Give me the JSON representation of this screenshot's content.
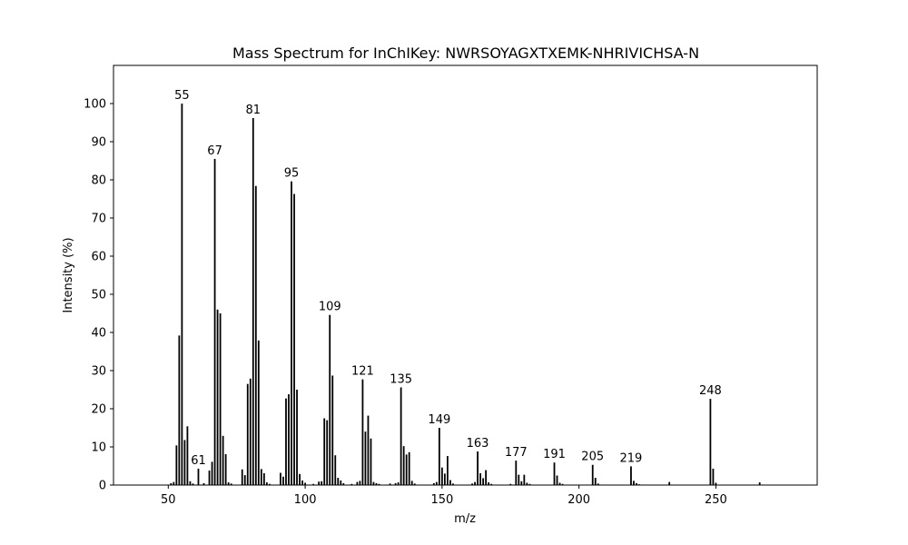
{
  "chart_data": {
    "type": "bar",
    "title": "Mass Spectrum for InChIKey: NWRSOYAGXTXEMK-NHRIVICHSA-N",
    "xlabel": "m/z",
    "ylabel": "Intensity (%)",
    "xlim": [
      30,
      287
    ],
    "ylim": [
      0,
      110
    ],
    "xticks": [
      50,
      100,
      150,
      200,
      250
    ],
    "yticks": [
      0,
      10,
      20,
      30,
      40,
      50,
      60,
      70,
      80,
      90,
      100
    ],
    "grid": false,
    "bar_color": "#000000",
    "peaks": [
      {
        "x": 51,
        "y": 0.5
      },
      {
        "x": 52,
        "y": 0.8
      },
      {
        "x": 53,
        "y": 10.4
      },
      {
        "x": 54,
        "y": 39.2
      },
      {
        "x": 55,
        "y": 100.0
      },
      {
        "x": 56,
        "y": 11.8
      },
      {
        "x": 57,
        "y": 15.4
      },
      {
        "x": 58,
        "y": 1.0
      },
      {
        "x": 59,
        "y": 0.4
      },
      {
        "x": 61,
        "y": 4.3
      },
      {
        "x": 63,
        "y": 0.5
      },
      {
        "x": 65,
        "y": 3.8
      },
      {
        "x": 66,
        "y": 6.1
      },
      {
        "x": 67,
        "y": 85.5
      },
      {
        "x": 68,
        "y": 46.0
      },
      {
        "x": 69,
        "y": 45.0
      },
      {
        "x": 70,
        "y": 12.9
      },
      {
        "x": 71,
        "y": 8.1
      },
      {
        "x": 72,
        "y": 0.7
      },
      {
        "x": 73,
        "y": 0.4
      },
      {
        "x": 77,
        "y": 4.1
      },
      {
        "x": 78,
        "y": 2.6
      },
      {
        "x": 79,
        "y": 26.5
      },
      {
        "x": 80,
        "y": 27.9
      },
      {
        "x": 81,
        "y": 96.2
      },
      {
        "x": 82,
        "y": 78.4
      },
      {
        "x": 83,
        "y": 37.9
      },
      {
        "x": 84,
        "y": 4.2
      },
      {
        "x": 85,
        "y": 3.1
      },
      {
        "x": 86,
        "y": 0.7
      },
      {
        "x": 87,
        "y": 0.3
      },
      {
        "x": 91,
        "y": 3.2
      },
      {
        "x": 92,
        "y": 2.2
      },
      {
        "x": 93,
        "y": 22.7
      },
      {
        "x": 94,
        "y": 23.8
      },
      {
        "x": 95,
        "y": 79.6
      },
      {
        "x": 96,
        "y": 76.3
      },
      {
        "x": 97,
        "y": 25.0
      },
      {
        "x": 98,
        "y": 2.9
      },
      {
        "x": 99,
        "y": 1.2
      },
      {
        "x": 100,
        "y": 0.6
      },
      {
        "x": 103,
        "y": 0.3
      },
      {
        "x": 105,
        "y": 0.9
      },
      {
        "x": 106,
        "y": 1.0
      },
      {
        "x": 107,
        "y": 17.5
      },
      {
        "x": 108,
        "y": 17.0
      },
      {
        "x": 109,
        "y": 44.6
      },
      {
        "x": 110,
        "y": 28.7
      },
      {
        "x": 111,
        "y": 7.8
      },
      {
        "x": 112,
        "y": 1.9
      },
      {
        "x": 113,
        "y": 1.2
      },
      {
        "x": 114,
        "y": 0.5
      },
      {
        "x": 117,
        "y": 0.3
      },
      {
        "x": 119,
        "y": 0.8
      },
      {
        "x": 120,
        "y": 1.1
      },
      {
        "x": 121,
        "y": 27.7
      },
      {
        "x": 122,
        "y": 14.0
      },
      {
        "x": 123,
        "y": 18.2
      },
      {
        "x": 124,
        "y": 12.2
      },
      {
        "x": 125,
        "y": 0.8
      },
      {
        "x": 126,
        "y": 0.5
      },
      {
        "x": 127,
        "y": 0.3
      },
      {
        "x": 131,
        "y": 0.4
      },
      {
        "x": 133,
        "y": 0.5
      },
      {
        "x": 134,
        "y": 0.7
      },
      {
        "x": 135,
        "y": 25.6
      },
      {
        "x": 136,
        "y": 10.2
      },
      {
        "x": 137,
        "y": 8.0
      },
      {
        "x": 138,
        "y": 8.6
      },
      {
        "x": 139,
        "y": 1.1
      },
      {
        "x": 140,
        "y": 0.4
      },
      {
        "x": 147,
        "y": 0.5
      },
      {
        "x": 148,
        "y": 0.8
      },
      {
        "x": 149,
        "y": 15.0
      },
      {
        "x": 150,
        "y": 4.6
      },
      {
        "x": 151,
        "y": 3.0
      },
      {
        "x": 152,
        "y": 7.6
      },
      {
        "x": 153,
        "y": 1.3
      },
      {
        "x": 154,
        "y": 0.4
      },
      {
        "x": 161,
        "y": 0.4
      },
      {
        "x": 162,
        "y": 0.8
      },
      {
        "x": 163,
        "y": 8.8
      },
      {
        "x": 164,
        "y": 3.1
      },
      {
        "x": 165,
        "y": 1.8
      },
      {
        "x": 166,
        "y": 3.9
      },
      {
        "x": 167,
        "y": 0.7
      },
      {
        "x": 168,
        "y": 0.3
      },
      {
        "x": 175,
        "y": 0.3
      },
      {
        "x": 177,
        "y": 6.4
      },
      {
        "x": 178,
        "y": 2.7
      },
      {
        "x": 179,
        "y": 1.0
      },
      {
        "x": 180,
        "y": 2.7
      },
      {
        "x": 181,
        "y": 0.6
      },
      {
        "x": 182,
        "y": 0.3
      },
      {
        "x": 191,
        "y": 5.9
      },
      {
        "x": 192,
        "y": 2.5
      },
      {
        "x": 193,
        "y": 0.6
      },
      {
        "x": 194,
        "y": 0.3
      },
      {
        "x": 205,
        "y": 5.3
      },
      {
        "x": 206,
        "y": 1.9
      },
      {
        "x": 207,
        "y": 0.4
      },
      {
        "x": 219,
        "y": 4.9
      },
      {
        "x": 220,
        "y": 1.1
      },
      {
        "x": 221,
        "y": 0.5
      },
      {
        "x": 222,
        "y": 0.2
      },
      {
        "x": 233,
        "y": 0.8
      },
      {
        "x": 248,
        "y": 22.6
      },
      {
        "x": 249,
        "y": 4.3
      },
      {
        "x": 250,
        "y": 0.6
      },
      {
        "x": 266,
        "y": 0.7
      }
    ],
    "annotations": [
      {
        "x": 55,
        "text": "55"
      },
      {
        "x": 61,
        "text": "61"
      },
      {
        "x": 67,
        "text": "67"
      },
      {
        "x": 81,
        "text": "81"
      },
      {
        "x": 95,
        "text": "95"
      },
      {
        "x": 109,
        "text": "109"
      },
      {
        "x": 121,
        "text": "121"
      },
      {
        "x": 135,
        "text": "135"
      },
      {
        "x": 149,
        "text": "149"
      },
      {
        "x": 163,
        "text": "163"
      },
      {
        "x": 177,
        "text": "177"
      },
      {
        "x": 191,
        "text": "191"
      },
      {
        "x": 205,
        "text": "205"
      },
      {
        "x": 219,
        "text": "219"
      },
      {
        "x": 248,
        "text": "248"
      }
    ]
  }
}
